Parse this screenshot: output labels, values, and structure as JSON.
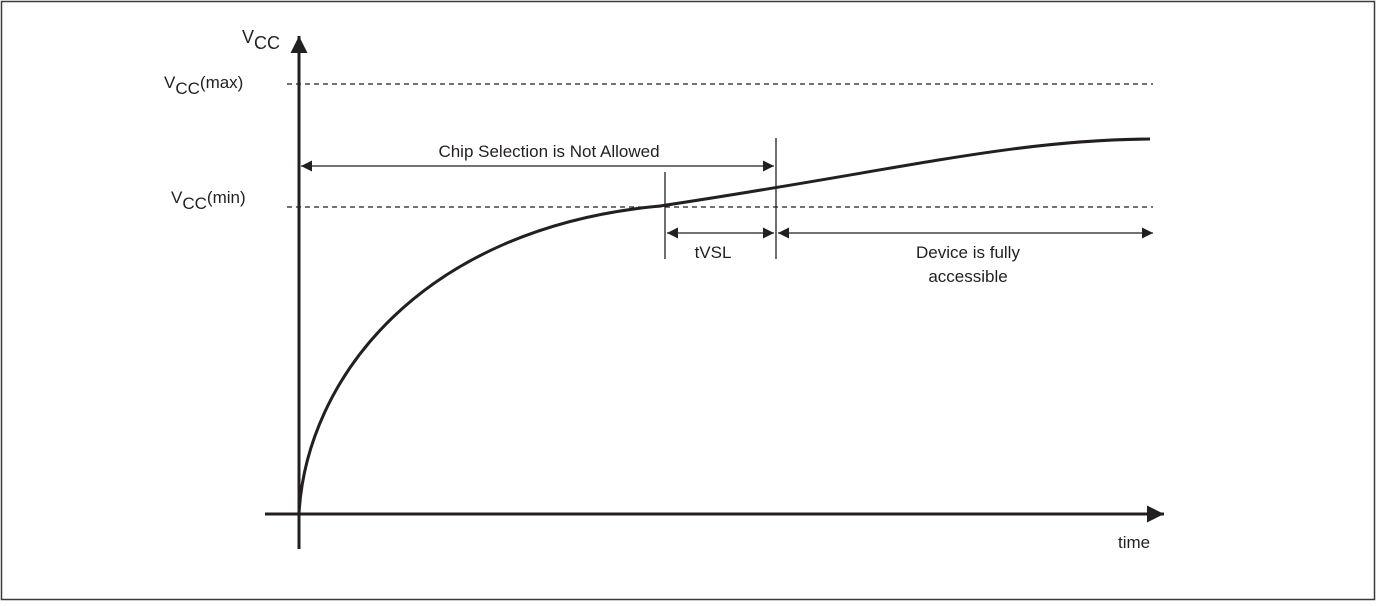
{
  "diagram": {
    "y_axis": {
      "main": "V",
      "sub": "CC"
    },
    "x_axis": {
      "label": "time"
    },
    "vcc_max": {
      "main": "V",
      "sub": "CC",
      "suffix": "(max)"
    },
    "vcc_min": {
      "main": "V",
      "sub": "CC",
      "suffix": "(min)"
    },
    "chip_selection": "Chip Selection is Not Allowed",
    "tvsl": "tVSL",
    "device_line1": "Device is fully",
    "device_line2": "accessible"
  },
  "colors": {
    "ink": "#231f20",
    "frame": "#3a3a3a"
  }
}
